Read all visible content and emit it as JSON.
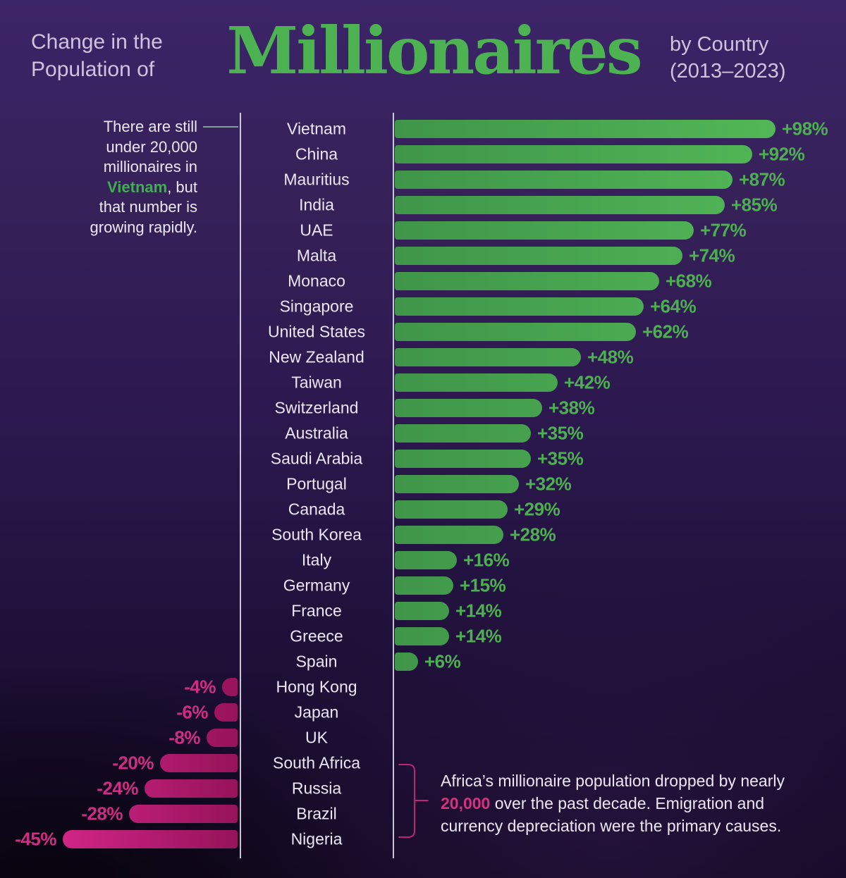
{
  "title": {
    "prefix_line1": "Change in the",
    "prefix_line2": "Population of",
    "main": "Millionaires",
    "suffix_line1": "by Country",
    "suffix_line2": "(2013–2023)"
  },
  "colors": {
    "background_top": "#3c2468",
    "background_bottom": "#120820",
    "positive_green": "#4cb050",
    "negative_pink": "#c92280",
    "text_light": "#ece7f4",
    "text_muted": "#cfc3de",
    "connector_teal": "#7e9e95"
  },
  "annotations": {
    "vietnam_note": {
      "segments": [
        {
          "text": "There are still\nunder 20,000\nmillionaires in\n"
        },
        {
          "text": "Vietnam",
          "highlight": true
        },
        {
          "text": ", but\nthat number is\ngrowing rapidly."
        }
      ]
    },
    "africa_note": {
      "segments": [
        {
          "text": "Africa’s millionaire population dropped by nearly\n"
        },
        {
          "text": "20,000",
          "highlight": true
        },
        {
          "text": " over the past decade. Emigration and\ncurrency depreciation were the primary causes."
        }
      ]
    }
  },
  "chart_data": {
    "type": "bar",
    "orientation": "horizontal",
    "title": "Change in the Population of Millionaires by Country (2013–2023)",
    "unit": "%",
    "xlabel": "",
    "ylabel": "",
    "xlim": [
      -45,
      98
    ],
    "grid": false,
    "legend": false,
    "categories": [
      "Vietnam",
      "China",
      "Mauritius",
      "India",
      "UAE",
      "Malta",
      "Monaco",
      "Singapore",
      "United States",
      "New Zealand",
      "Taiwan",
      "Switzerland",
      "Australia",
      "Saudi Arabia",
      "Portugal",
      "Canada",
      "South Korea",
      "Italy",
      "Germany",
      "France",
      "Greece",
      "Spain",
      "Hong Kong",
      "Japan",
      "UK",
      "South Africa",
      "Russia",
      "Brazil",
      "Nigeria"
    ],
    "values": [
      98,
      92,
      87,
      85,
      77,
      74,
      68,
      64,
      62,
      48,
      42,
      38,
      35,
      35,
      32,
      29,
      28,
      16,
      15,
      14,
      14,
      6,
      -4,
      -6,
      -8,
      -20,
      -24,
      -28,
      -45
    ]
  }
}
